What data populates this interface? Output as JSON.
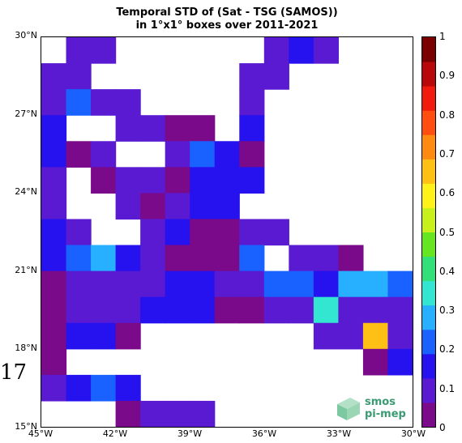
{
  "chart_data": {
    "type": "heatmap",
    "title_line1": "Temporal STD of (Sat - TSG (SAMOS))",
    "title_line2": "in 1°x1° boxes over 2011-2021",
    "lon_range": [
      -45,
      -30
    ],
    "lat_range": [
      15,
      30
    ],
    "grid_origin": "top-left cell is lon -45..-44, lat 29..30; columns go east, rows go south",
    "x_ticks": [
      {
        "value": -45,
        "label": "45°W"
      },
      {
        "value": -42,
        "label": "42°W"
      },
      {
        "value": -39,
        "label": "39°W"
      },
      {
        "value": -36,
        "label": "36°W"
      },
      {
        "value": -33,
        "label": "33°W"
      },
      {
        "value": -30,
        "label": "30°W"
      }
    ],
    "y_ticks": [
      {
        "value": 30,
        "label": "30°N"
      },
      {
        "value": 27,
        "label": "27°N"
      },
      {
        "value": 24,
        "label": "24°N"
      },
      {
        "value": 21,
        "label": "21°N"
      },
      {
        "value": 18,
        "label": "18°N"
      },
      {
        "value": 15,
        "label": "15°N"
      }
    ],
    "colorbar": {
      "range": [
        0,
        1
      ],
      "ticks": [
        "0",
        "0.1",
        "0.2",
        "0.3",
        "0.4",
        "0.5",
        "0.6",
        "0.7",
        "0.8",
        "0.9",
        "1"
      ],
      "colors": [
        "#7a0a8a",
        "#5a1ad2",
        "#2612ee",
        "#1a62ff",
        "#26b0ff",
        "#32e6d2",
        "#32e07a",
        "#66e620",
        "#c8f01a",
        "#fff21a",
        "#ffc016",
        "#ff8a12",
        "#ff4e10",
        "#f01a0e",
        "#b8080a",
        "#7a0000"
      ]
    },
    "grid": [
      [
        null,
        0.12,
        0.12,
        null,
        null,
        null,
        null,
        null,
        null,
        0.07,
        0.13,
        0.07,
        null,
        null,
        null
      ],
      [
        0.07,
        0.12,
        null,
        null,
        null,
        null,
        null,
        null,
        0.12,
        0.07,
        null,
        null,
        null,
        null,
        null
      ],
      [
        0.07,
        0.24,
        0.12,
        0.12,
        null,
        null,
        null,
        null,
        0.12,
        null,
        null,
        null,
        null,
        null,
        null
      ],
      [
        0.18,
        null,
        null,
        0.12,
        0.12,
        0.05,
        0.05,
        null,
        0.18,
        null,
        null,
        null,
        null,
        null,
        null
      ],
      [
        0.18,
        0.05,
        0.1,
        null,
        null,
        0.12,
        0.22,
        0.18,
        0.05,
        null,
        null,
        null,
        null,
        null,
        null
      ],
      [
        0.1,
        null,
        0.05,
        0.1,
        0.1,
        0.05,
        0.13,
        0.18,
        0.13,
        null,
        null,
        null,
        null,
        null,
        null
      ],
      [
        0.1,
        null,
        null,
        0.1,
        0.05,
        0.1,
        0.13,
        0.18,
        null,
        null,
        null,
        null,
        null,
        null,
        null
      ],
      [
        0.18,
        0.1,
        null,
        null,
        0.1,
        0.15,
        0.05,
        0.05,
        0.1,
        0.1,
        null,
        null,
        null,
        null,
        null
      ],
      [
        0.18,
        0.22,
        0.28,
        0.18,
        0.1,
        0.05,
        0.05,
        0.05,
        0.22,
        null,
        0.12,
        0.12,
        0.05,
        null,
        null
      ],
      [
        0.05,
        0.1,
        0.1,
        0.12,
        0.12,
        0.18,
        0.18,
        0.12,
        0.12,
        0.22,
        0.22,
        0.18,
        0.26,
        0.26,
        0.22
      ],
      [
        0.05,
        0.1,
        0.1,
        0.12,
        0.18,
        0.18,
        0.18,
        0.05,
        0.05,
        0.1,
        0.1,
        0.32,
        0.1,
        0.1,
        0.12
      ],
      [
        0.05,
        0.14,
        0.14,
        0.05,
        null,
        null,
        null,
        null,
        null,
        null,
        null,
        0.1,
        0.1,
        0.63,
        0.08
      ],
      [
        0.05,
        null,
        null,
        null,
        null,
        null,
        null,
        null,
        null,
        null,
        null,
        null,
        null,
        0.05,
        0.14
      ],
      [
        0.08,
        0.14,
        0.22,
        0.18,
        null,
        null,
        null,
        null,
        null,
        null,
        null,
        null,
        null,
        null,
        null
      ],
      [
        null,
        null,
        null,
        0.05,
        0.08,
        0.08,
        0.08,
        null,
        null,
        null,
        null,
        null,
        null,
        null,
        null
      ]
    ]
  },
  "stray_label": "17",
  "logo": {
    "line1": "smos",
    "line2": "pi-mep"
  }
}
